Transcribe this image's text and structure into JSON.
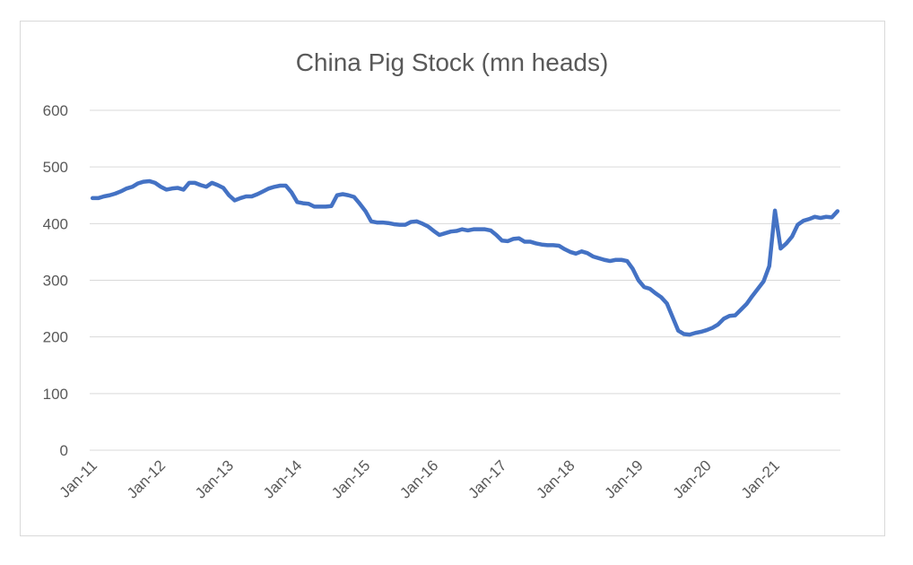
{
  "chart_data": {
    "type": "line",
    "title": "China Pig Stock (mn heads)",
    "xlabel": "",
    "ylabel": "",
    "ylim": [
      0,
      600
    ],
    "yticks": [
      0,
      100,
      200,
      300,
      400,
      500,
      600
    ],
    "grid": true,
    "legend": "none",
    "x_tick_labels": [
      "Jan-11",
      "Jan-12",
      "Jan-13",
      "Jan-14",
      "Jan-15",
      "Jan-16",
      "Jan-17",
      "Jan-18",
      "Jan-19",
      "Jan-20",
      "Jan-21"
    ],
    "series": [
      {
        "color": "#4472c4",
        "x": [
          "Jan-11",
          "Feb-11",
          "Mar-11",
          "Apr-11",
          "May-11",
          "Jun-11",
          "Jul-11",
          "Aug-11",
          "Sep-11",
          "Oct-11",
          "Nov-11",
          "Dec-11",
          "Jan-12",
          "Feb-12",
          "Mar-12",
          "Apr-12",
          "May-12",
          "Jun-12",
          "Jul-12",
          "Aug-12",
          "Sep-12",
          "Oct-12",
          "Nov-12",
          "Dec-12",
          "Jan-13",
          "Feb-13",
          "Mar-13",
          "Apr-13",
          "May-13",
          "Jun-13",
          "Jul-13",
          "Aug-13",
          "Sep-13",
          "Oct-13",
          "Nov-13",
          "Dec-13",
          "Jan-14",
          "Feb-14",
          "Mar-14",
          "Apr-14",
          "May-14",
          "Jun-14",
          "Jul-14",
          "Aug-14",
          "Sep-14",
          "Oct-14",
          "Nov-14",
          "Dec-14",
          "Jan-15",
          "Feb-15",
          "Mar-15",
          "Apr-15",
          "May-15",
          "Jun-15",
          "Jul-15",
          "Aug-15",
          "Sep-15",
          "Oct-15",
          "Nov-15",
          "Dec-15",
          "Jan-16",
          "Feb-16",
          "Mar-16",
          "Apr-16",
          "May-16",
          "Jun-16",
          "Jul-16",
          "Aug-16",
          "Sep-16",
          "Oct-16",
          "Nov-16",
          "Dec-16",
          "Jan-17",
          "Feb-17",
          "Mar-17",
          "Apr-17",
          "May-17",
          "Jun-17",
          "Jul-17",
          "Aug-17",
          "Sep-17",
          "Oct-17",
          "Nov-17",
          "Dec-17",
          "Jan-18",
          "Feb-18",
          "Mar-18",
          "Apr-18",
          "May-18",
          "Jun-18",
          "Jul-18",
          "Aug-18",
          "Sep-18",
          "Oct-18",
          "Nov-18",
          "Dec-18",
          "Jan-19",
          "Feb-19",
          "Mar-19",
          "Apr-19",
          "May-19",
          "Jun-19",
          "Jul-19",
          "Aug-19",
          "Sep-19",
          "Oct-19",
          "Nov-19",
          "Dec-19",
          "Jan-20",
          "Feb-20",
          "Mar-20",
          "Apr-20",
          "May-20",
          "Jun-20",
          "Jul-20",
          "Aug-20",
          "Sep-20",
          "Oct-20",
          "Nov-20",
          "Dec-20",
          "Jan-21",
          "Feb-21",
          "Mar-21",
          "Apr-21",
          "May-21",
          "Jun-21",
          "Jul-21",
          "Aug-21",
          "Sep-21",
          "Oct-21",
          "Nov-21",
          "Dec-21"
        ],
        "values": [
          445,
          445,
          448,
          450,
          453,
          457,
          462,
          465,
          471,
          474,
          475,
          472,
          465,
          460,
          462,
          463,
          460,
          472,
          472,
          468,
          465,
          472,
          468,
          463,
          450,
          441,
          445,
          448,
          448,
          452,
          457,
          462,
          465,
          467,
          467,
          455,
          438,
          436,
          435,
          430,
          430,
          430,
          431,
          450,
          452,
          450,
          447,
          435,
          422,
          404,
          402,
          402,
          401,
          399,
          398,
          398,
          403,
          404,
          400,
          395,
          387,
          380,
          383,
          386,
          387,
          390,
          388,
          390,
          390,
          390,
          388,
          380,
          370,
          369,
          373,
          374,
          368,
          368,
          365,
          363,
          362,
          362,
          361,
          355,
          350,
          347,
          351,
          348,
          342,
          339,
          336,
          334,
          336,
          336,
          334,
          320,
          300,
          288,
          285,
          277,
          270,
          259,
          235,
          211,
          205,
          204,
          207,
          209,
          212,
          216,
          222,
          232,
          237,
          238,
          248,
          258,
          272,
          285,
          298,
          325,
          423,
          356,
          365,
          377,
          398,
          405,
          408,
          412,
          410,
          412,
          411,
          422
        ]
      }
    ]
  }
}
